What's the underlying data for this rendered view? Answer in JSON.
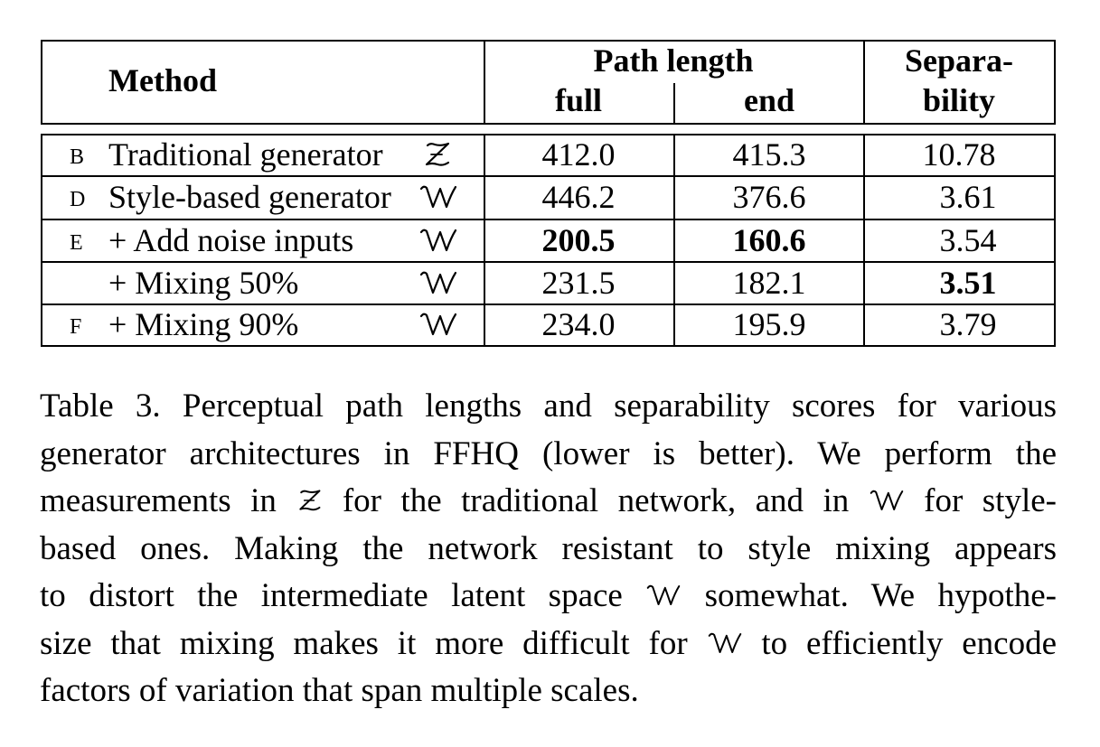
{
  "table": {
    "header": {
      "method": "Method",
      "path_length": "Path length",
      "full": "full",
      "end": "end",
      "separability_line1": "Separa-",
      "separability_line2": "bility"
    },
    "rows": [
      {
        "letter": "B",
        "method": "Traditional generator",
        "space": "Z",
        "full": "412.0",
        "end": "415.3",
        "sep": "10.78",
        "bold": []
      },
      {
        "letter": "D",
        "method": "Style-based generator",
        "space": "W",
        "full": "446.2",
        "end": "376.6",
        "sep": "3.61",
        "bold": []
      },
      {
        "letter": "E",
        "method": "+ Add noise inputs",
        "space": "W",
        "full": "200.5",
        "end": "160.6",
        "sep": "3.54",
        "bold": [
          "full",
          "end"
        ]
      },
      {
        "letter": "",
        "method": "+ Mixing 50%",
        "space": "W",
        "full": "231.5",
        "end": "182.1",
        "sep": "3.51",
        "bold": [
          "sep"
        ]
      },
      {
        "letter": "F",
        "method": "+ Mixing 90%",
        "space": "W",
        "full": "234.0",
        "end": "195.9",
        "sep": "3.79",
        "bold": []
      }
    ]
  },
  "caption": {
    "l1": "Table 3. Perceptual path lengths and separability scores for various",
    "l2": "generator architectures in FFHQ (lower is better). We perform the",
    "l3a": "measurements in ",
    "l3b": " for the traditional network, and in ",
    "l3c": " for style-",
    "l4": "based ones. Making the network resistant to style mixing appears",
    "l5a": "to distort the intermediate latent space ",
    "l5b": " somewhat. We hypothe-",
    "l6a": "size that mixing makes it more difficult for ",
    "l6b": " to efficiently encode",
    "l7": "factors of variation that span multiple scales."
  }
}
